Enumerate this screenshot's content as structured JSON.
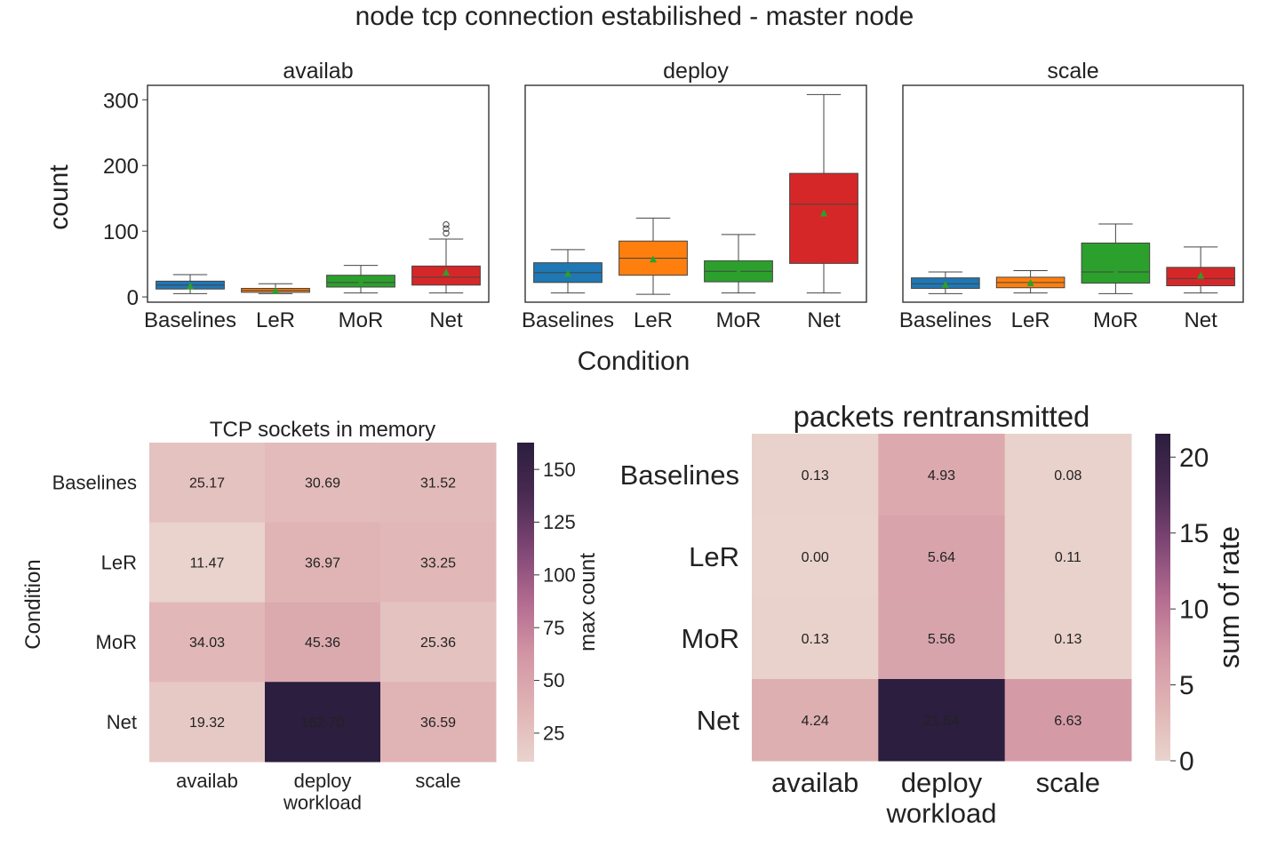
{
  "figure": {
    "title": "node tcp connection estabilished - master node"
  },
  "chart_data": [
    {
      "type": "box",
      "panel_title": "availab",
      "ylabel": "count",
      "xlabel": "Condition",
      "categories": [
        "Baselines",
        "LeR",
        "MoR",
        "Net"
      ],
      "ylim": [
        -8,
        322
      ],
      "yticks": [
        0,
        100,
        200,
        300
      ],
      "boxes": [
        {
          "name": "Baselines",
          "color": "#1f77b4",
          "whisker_low": 5,
          "q1": 12,
          "median": 18,
          "q3": 24,
          "whisker_high": 34,
          "mean": 17,
          "outliers": []
        },
        {
          "name": "LeR",
          "color": "#ff7f0e",
          "whisker_low": 5,
          "q1": 7,
          "median": 10,
          "q3": 13,
          "whisker_high": 20,
          "mean": 10,
          "outliers": []
        },
        {
          "name": "MoR",
          "color": "#2ca02c",
          "whisker_low": 6,
          "q1": 15,
          "median": 22,
          "q3": 33,
          "whisker_high": 48,
          "mean": 23,
          "outliers": []
        },
        {
          "name": "Net",
          "color": "#d62728",
          "whisker_low": 6,
          "q1": 18,
          "median": 30,
          "q3": 47,
          "whisker_high": 88,
          "mean": 38,
          "outliers": [
            97,
            104,
            110
          ]
        }
      ]
    },
    {
      "type": "box",
      "panel_title": "deploy",
      "categories": [
        "Baselines",
        "LeR",
        "MoR",
        "Net"
      ],
      "ylim": [
        -8,
        322
      ],
      "boxes": [
        {
          "name": "Baselines",
          "color": "#1f77b4",
          "whisker_low": 6,
          "q1": 22,
          "median": 37,
          "q3": 52,
          "whisker_high": 72,
          "mean": 36,
          "outliers": []
        },
        {
          "name": "LeR",
          "color": "#ff7f0e",
          "whisker_low": 4,
          "q1": 33,
          "median": 59,
          "q3": 85,
          "whisker_high": 120,
          "mean": 58,
          "outliers": []
        },
        {
          "name": "MoR",
          "color": "#2ca02c",
          "whisker_low": 6,
          "q1": 23,
          "median": 39,
          "q3": 55,
          "whisker_high": 95,
          "mean": 39,
          "outliers": []
        },
        {
          "name": "Net",
          "color": "#d62728",
          "whisker_low": 6,
          "q1": 51,
          "median": 141,
          "q3": 188,
          "whisker_high": 308,
          "mean": 128,
          "outliers": []
        }
      ]
    },
    {
      "type": "box",
      "panel_title": "scale",
      "categories": [
        "Baselines",
        "LeR",
        "MoR",
        "Net"
      ],
      "ylim": [
        -8,
        322
      ],
      "boxes": [
        {
          "name": "Baselines",
          "color": "#1f77b4",
          "whisker_low": 5,
          "q1": 13,
          "median": 20,
          "q3": 29,
          "whisker_high": 38,
          "mean": 19,
          "outliers": []
        },
        {
          "name": "LeR",
          "color": "#ff7f0e",
          "whisker_low": 6,
          "q1": 14,
          "median": 22,
          "q3": 30,
          "whisker_high": 40,
          "mean": 22,
          "outliers": []
        },
        {
          "name": "MoR",
          "color": "#2ca02c",
          "whisker_low": 5,
          "q1": 21,
          "median": 38,
          "q3": 82,
          "whisker_high": 111,
          "mean": 39,
          "outliers": []
        },
        {
          "name": "Net",
          "color": "#d62728",
          "whisker_low": 6,
          "q1": 17,
          "median": 28,
          "q3": 45,
          "whisker_high": 76,
          "mean": 33,
          "outliers": []
        }
      ]
    },
    {
      "type": "heatmap",
      "title": "TCP sockets in memory",
      "rows": [
        "Baselines",
        "LeR",
        "MoR",
        "Net"
      ],
      "cols": [
        "availab",
        "deploy\nworkload",
        "scale"
      ],
      "ylabel": "Condition",
      "values": [
        [
          25.17,
          30.69,
          31.52
        ],
        [
          11.47,
          36.97,
          33.25
        ],
        [
          34.03,
          45.36,
          25.36
        ],
        [
          19.32,
          162.7,
          36.59
        ]
      ],
      "labels": [
        [
          "25.17",
          "30.69",
          "31.52"
        ],
        [
          "11.47",
          "36.97",
          "33.25"
        ],
        [
          "34.03",
          "45.36",
          "25.36"
        ],
        [
          "19.32",
          "162.70",
          "36.59"
        ]
      ],
      "vmin": 11.47,
      "vmax": 162.7,
      "colorbar_label": "max count",
      "colorbar_ticks": [
        25,
        50,
        75,
        100,
        125,
        150
      ]
    },
    {
      "type": "heatmap",
      "title": "packets rentransmitted",
      "rows": [
        "Baselines",
        "LeR",
        "MoR",
        "Net"
      ],
      "cols": [
        "availab",
        "deploy\nworkload",
        "scale"
      ],
      "values": [
        [
          0.13,
          4.93,
          0.08
        ],
        [
          0.0,
          5.64,
          0.11
        ],
        [
          0.13,
          5.56,
          0.13
        ],
        [
          4.24,
          21.54,
          6.63
        ]
      ],
      "labels": [
        [
          "0.13",
          "4.93",
          "0.08"
        ],
        [
          "0.00",
          "5.64",
          "0.11"
        ],
        [
          "0.13",
          "5.56",
          "0.13"
        ],
        [
          "4.24",
          "21.54",
          "6.63"
        ]
      ],
      "vmin": 0,
      "vmax": 21.54,
      "colorbar_label": "sum of rate",
      "colorbar_ticks": [
        0,
        5,
        10,
        15,
        20
      ]
    }
  ],
  "colormap": {
    "stops": [
      "#e9d3cc",
      "#e0b4b4",
      "#d296a5",
      "#b36b8f",
      "#7e4674",
      "#4a2a52",
      "#2b1e3e"
    ]
  }
}
